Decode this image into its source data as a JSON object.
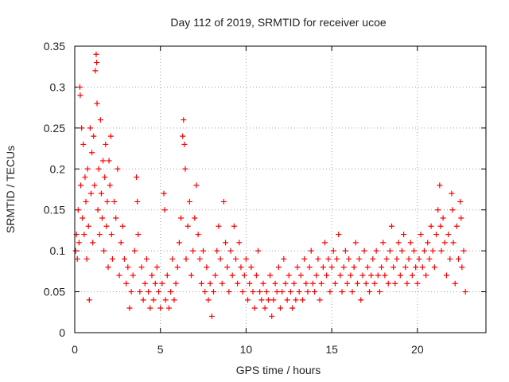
{
  "chart_data": {
    "type": "scatter",
    "title": "Day 112 of 2019, SRMTID for receiver ucoe",
    "xlabel": "GPS time / hours",
    "ylabel": "SRMTID / TECUs",
    "xlim": [
      0,
      24
    ],
    "ylim": [
      0,
      0.35
    ],
    "x_ticks": [
      0,
      5,
      10,
      15,
      20
    ],
    "x_tick_labels": [
      "0",
      "5",
      "10",
      "15",
      "20"
    ],
    "y_ticks": [
      0,
      0.05,
      0.1,
      0.15,
      0.2,
      0.25,
      0.3,
      0.35
    ],
    "y_tick_labels": [
      "0",
      "0.05",
      "0.1",
      "0.15",
      "0.2",
      "0.25",
      "0.3",
      "0.35"
    ],
    "grid": true,
    "marker": "plus",
    "color": "#ff0000",
    "series": [
      {
        "name": "SRMTID",
        "points": [
          [
            0.05,
            0.1
          ],
          [
            0.1,
            0.12
          ],
          [
            0.15,
            0.09
          ],
          [
            0.2,
            0.15
          ],
          [
            0.25,
            0.11
          ],
          [
            0.3,
            0.3
          ],
          [
            0.32,
            0.29
          ],
          [
            0.35,
            0.18
          ],
          [
            0.4,
            0.25
          ],
          [
            0.45,
            0.14
          ],
          [
            0.5,
            0.23
          ],
          [
            0.55,
            0.12
          ],
          [
            0.6,
            0.19
          ],
          [
            0.65,
            0.16
          ],
          [
            0.7,
            0.09
          ],
          [
            0.75,
            0.2
          ],
          [
            0.8,
            0.13
          ],
          [
            0.85,
            0.04
          ],
          [
            0.9,
            0.25
          ],
          [
            0.95,
            0.17
          ],
          [
            1.0,
            0.22
          ],
          [
            1.05,
            0.11
          ],
          [
            1.1,
            0.24
          ],
          [
            1.15,
            0.18
          ],
          [
            1.2,
            0.32
          ],
          [
            1.25,
            0.34
          ],
          [
            1.28,
            0.33
          ],
          [
            1.3,
            0.28
          ],
          [
            1.35,
            0.15
          ],
          [
            1.4,
            0.2
          ],
          [
            1.45,
            0.12
          ],
          [
            1.5,
            0.26
          ],
          [
            1.55,
            0.17
          ],
          [
            1.6,
            0.14
          ],
          [
            1.65,
            0.21
          ],
          [
            1.7,
            0.1
          ],
          [
            1.75,
            0.19
          ],
          [
            1.8,
            0.23
          ],
          [
            1.85,
            0.13
          ],
          [
            1.9,
            0.16
          ],
          [
            1.95,
            0.08
          ],
          [
            2.0,
            0.21
          ],
          [
            2.05,
            0.18
          ],
          [
            2.1,
            0.24
          ],
          [
            2.15,
            0.12
          ],
          [
            2.2,
            0.09
          ],
          [
            2.3,
            0.16
          ],
          [
            2.4,
            0.14
          ],
          [
            2.5,
            0.2
          ],
          [
            2.6,
            0.07
          ],
          [
            2.7,
            0.11
          ],
          [
            2.8,
            0.13
          ],
          [
            2.9,
            0.09
          ],
          [
            3.0,
            0.06
          ],
          [
            3.1,
            0.08
          ],
          [
            3.2,
            0.03
          ],
          [
            3.3,
            0.05
          ],
          [
            3.4,
            0.07
          ],
          [
            3.5,
            0.1
          ],
          [
            3.6,
            0.19
          ],
          [
            3.65,
            0.16
          ],
          [
            3.7,
            0.12
          ],
          [
            3.8,
            0.05
          ],
          [
            3.9,
            0.08
          ],
          [
            4.0,
            0.04
          ],
          [
            4.1,
            0.06
          ],
          [
            4.2,
            0.09
          ],
          [
            4.3,
            0.05
          ],
          [
            4.4,
            0.03
          ],
          [
            4.5,
            0.07
          ],
          [
            4.6,
            0.04
          ],
          [
            4.7,
            0.06
          ],
          [
            4.8,
            0.08
          ],
          [
            4.9,
            0.05
          ],
          [
            5.0,
            0.03
          ],
          [
            5.1,
            0.06
          ],
          [
            5.2,
            0.17
          ],
          [
            5.25,
            0.15
          ],
          [
            5.3,
            0.04
          ],
          [
            5.4,
            0.07
          ],
          [
            5.5,
            0.03
          ],
          [
            5.6,
            0.05
          ],
          [
            5.7,
            0.09
          ],
          [
            5.8,
            0.04
          ],
          [
            5.9,
            0.06
          ],
          [
            6.0,
            0.08
          ],
          [
            6.1,
            0.11
          ],
          [
            6.2,
            0.14
          ],
          [
            6.3,
            0.24
          ],
          [
            6.35,
            0.26
          ],
          [
            6.4,
            0.23
          ],
          [
            6.45,
            0.2
          ],
          [
            6.5,
            0.09
          ],
          [
            6.6,
            0.13
          ],
          [
            6.7,
            0.16
          ],
          [
            6.8,
            0.07
          ],
          [
            6.9,
            0.1
          ],
          [
            7.0,
            0.14
          ],
          [
            7.1,
            0.18
          ],
          [
            7.2,
            0.12
          ],
          [
            7.3,
            0.09
          ],
          [
            7.4,
            0.06
          ],
          [
            7.5,
            0.1
          ],
          [
            7.6,
            0.05
          ],
          [
            7.7,
            0.08
          ],
          [
            7.8,
            0.04
          ],
          [
            7.9,
            0.06
          ],
          [
            8.0,
            0.02
          ],
          [
            8.1,
            0.05
          ],
          [
            8.2,
            0.07
          ],
          [
            8.3,
            0.1
          ],
          [
            8.4,
            0.13
          ],
          [
            8.5,
            0.09
          ],
          [
            8.6,
            0.06
          ],
          [
            8.7,
            0.16
          ],
          [
            8.8,
            0.11
          ],
          [
            8.9,
            0.08
          ],
          [
            9.0,
            0.05
          ],
          [
            9.1,
            0.1
          ],
          [
            9.2,
            0.07
          ],
          [
            9.3,
            0.13
          ],
          [
            9.4,
            0.09
          ],
          [
            9.5,
            0.06
          ],
          [
            9.6,
            0.11
          ],
          [
            9.7,
            0.08
          ],
          [
            9.8,
            0.05
          ],
          [
            9.9,
            0.07
          ],
          [
            10.0,
            0.09
          ],
          [
            10.1,
            0.04
          ],
          [
            10.2,
            0.06
          ],
          [
            10.3,
            0.08
          ],
          [
            10.4,
            0.05
          ],
          [
            10.5,
            0.03
          ],
          [
            10.6,
            0.07
          ],
          [
            10.7,
            0.1
          ],
          [
            10.8,
            0.05
          ],
          [
            10.9,
            0.04
          ],
          [
            11.0,
            0.06
          ],
          [
            11.1,
            0.03
          ],
          [
            11.2,
            0.05
          ],
          [
            11.3,
            0.04
          ],
          [
            11.4,
            0.07
          ],
          [
            11.5,
            0.02
          ],
          [
            11.6,
            0.04
          ],
          [
            11.7,
            0.06
          ],
          [
            11.8,
            0.05
          ],
          [
            11.9,
            0.08
          ],
          [
            12.0,
            0.03
          ],
          [
            12.1,
            0.05
          ],
          [
            12.2,
            0.09
          ],
          [
            12.3,
            0.06
          ],
          [
            12.4,
            0.04
          ],
          [
            12.5,
            0.07
          ],
          [
            12.6,
            0.05
          ],
          [
            12.7,
            0.03
          ],
          [
            12.8,
            0.06
          ],
          [
            12.9,
            0.04
          ],
          [
            13.0,
            0.08
          ],
          [
            13.1,
            0.05
          ],
          [
            13.2,
            0.07
          ],
          [
            13.3,
            0.04
          ],
          [
            13.4,
            0.09
          ],
          [
            13.5,
            0.06
          ],
          [
            13.6,
            0.05
          ],
          [
            13.7,
            0.08
          ],
          [
            13.8,
            0.1
          ],
          [
            13.9,
            0.06
          ],
          [
            14.0,
            0.05
          ],
          [
            14.1,
            0.07
          ],
          [
            14.2,
            0.09
          ],
          [
            14.3,
            0.04
          ],
          [
            14.4,
            0.06
          ],
          [
            14.5,
            0.08
          ],
          [
            14.6,
            0.11
          ],
          [
            14.7,
            0.07
          ],
          [
            14.8,
            0.09
          ],
          [
            14.9,
            0.05
          ],
          [
            15.0,
            0.08
          ],
          [
            15.1,
            0.1
          ],
          [
            15.2,
            0.06
          ],
          [
            15.3,
            0.09
          ],
          [
            15.4,
            0.12
          ],
          [
            15.5,
            0.07
          ],
          [
            15.6,
            0.05
          ],
          [
            15.7,
            0.08
          ],
          [
            15.8,
            0.1
          ],
          [
            15.9,
            0.06
          ],
          [
            16.0,
            0.09
          ],
          [
            16.1,
            0.07
          ],
          [
            16.2,
            0.05
          ],
          [
            16.3,
            0.08
          ],
          [
            16.4,
            0.11
          ],
          [
            16.5,
            0.06
          ],
          [
            16.6,
            0.09
          ],
          [
            16.7,
            0.04
          ],
          [
            16.8,
            0.07
          ],
          [
            16.9,
            0.1
          ],
          [
            17.0,
            0.06
          ],
          [
            17.1,
            0.08
          ],
          [
            17.2,
            0.05
          ],
          [
            17.3,
            0.07
          ],
          [
            17.4,
            0.09
          ],
          [
            17.5,
            0.06
          ],
          [
            17.6,
            0.1
          ],
          [
            17.7,
            0.07
          ],
          [
            17.8,
            0.05
          ],
          [
            17.9,
            0.08
          ],
          [
            18.0,
            0.11
          ],
          [
            18.1,
            0.07
          ],
          [
            18.2,
            0.09
          ],
          [
            18.3,
            0.06
          ],
          [
            18.4,
            0.1
          ],
          [
            18.5,
            0.13
          ],
          [
            18.6,
            0.08
          ],
          [
            18.7,
            0.06
          ],
          [
            18.8,
            0.09
          ],
          [
            18.9,
            0.11
          ],
          [
            19.0,
            0.07
          ],
          [
            19.1,
            0.1
          ],
          [
            19.2,
            0.12
          ],
          [
            19.3,
            0.08
          ],
          [
            19.4,
            0.06
          ],
          [
            19.5,
            0.09
          ],
          [
            19.6,
            0.11
          ],
          [
            19.7,
            0.07
          ],
          [
            19.8,
            0.1
          ],
          [
            19.9,
            0.08
          ],
          [
            20.0,
            0.06
          ],
          [
            20.1,
            0.09
          ],
          [
            20.2,
            0.12
          ],
          [
            20.3,
            0.08
          ],
          [
            20.4,
            0.1
          ],
          [
            20.5,
            0.07
          ],
          [
            20.6,
            0.11
          ],
          [
            20.7,
            0.09
          ],
          [
            20.8,
            0.13
          ],
          [
            20.9,
            0.1
          ],
          [
            21.0,
            0.08
          ],
          [
            21.1,
            0.12
          ],
          [
            21.2,
            0.15
          ],
          [
            21.3,
            0.18
          ],
          [
            21.35,
            0.13
          ],
          [
            21.4,
            0.1
          ],
          [
            21.5,
            0.14
          ],
          [
            21.6,
            0.11
          ],
          [
            21.7,
            0.07
          ],
          [
            21.8,
            0.12
          ],
          [
            21.9,
            0.09
          ],
          [
            22.0,
            0.17
          ],
          [
            22.05,
            0.15
          ],
          [
            22.1,
            0.11
          ],
          [
            22.2,
            0.06
          ],
          [
            22.3,
            0.13
          ],
          [
            22.4,
            0.09
          ],
          [
            22.5,
            0.16
          ],
          [
            22.55,
            0.14
          ],
          [
            22.6,
            0.08
          ],
          [
            22.7,
            0.1
          ],
          [
            22.8,
            0.05
          ]
        ]
      }
    ]
  }
}
